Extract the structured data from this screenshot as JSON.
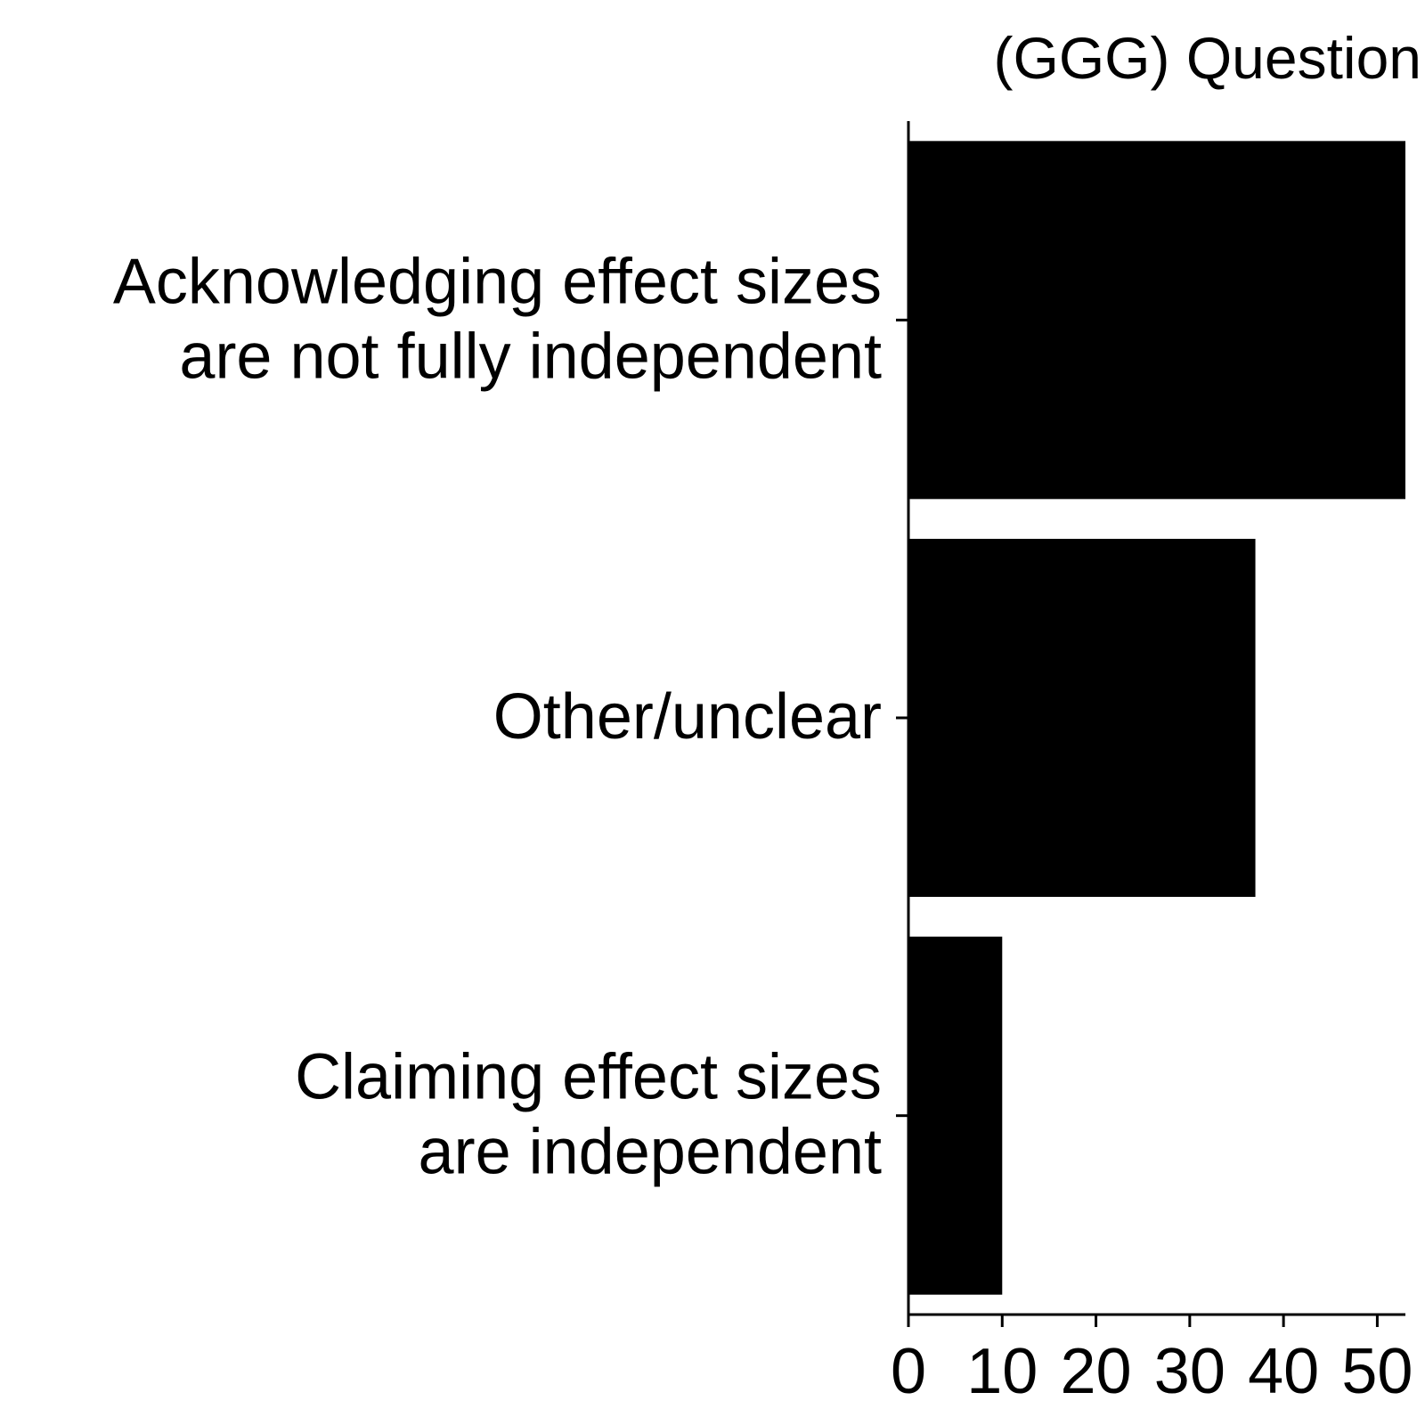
{
  "chart_data": {
    "type": "bar",
    "orientation": "horizontal",
    "title": "(GGG) Question",
    "xlabel": "",
    "ylabel": "",
    "categories": [
      [
        "Acknowledging effect sizes",
        "are not fully independent"
      ],
      [
        "Other/unclear"
      ],
      [
        "Claiming effect sizes",
        "are independent"
      ]
    ],
    "values": [
      53,
      37,
      10
    ],
    "xlim": [
      0,
      53
    ],
    "xticks": [
      0,
      10,
      20,
      30,
      40,
      50
    ],
    "grid": false,
    "legend": "none",
    "bar_color": "#000000"
  }
}
